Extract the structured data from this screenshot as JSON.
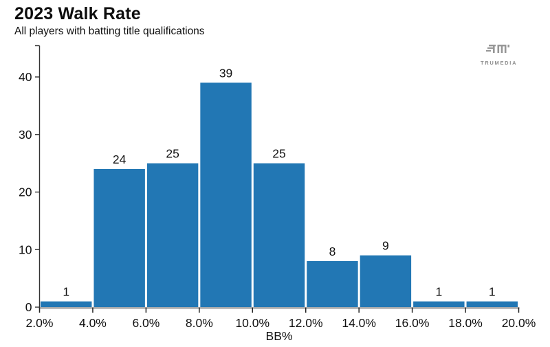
{
  "header": {
    "title": "2023 Walk Rate",
    "subtitle": "All players with batting title qualifications"
  },
  "logo": {
    "text": "TRUMEDIA"
  },
  "chart_data": {
    "type": "bar",
    "subtype": "histogram",
    "title": "2023 Walk Rate",
    "subtitle": "All players with batting title qualifications",
    "xlabel": "BB%",
    "ylabel": "",
    "bin_edges_pct": [
      2,
      4,
      6,
      8,
      10,
      12,
      14,
      16,
      18,
      20
    ],
    "categories": [
      "2-4%",
      "4-6%",
      "6-8%",
      "8-10%",
      "10-12%",
      "12-14%",
      "14-16%",
      "16-18%",
      "18-20%"
    ],
    "values": [
      1,
      24,
      25,
      39,
      25,
      8,
      9,
      1,
      1
    ],
    "bar_value_labels": [
      "1",
      "24",
      "25",
      "39",
      "25",
      "8",
      "9",
      "1",
      "1"
    ],
    "x_tick_labels": [
      "2.0%",
      "4.0%",
      "6.0%",
      "8.0%",
      "10.0%",
      "12.0%",
      "14.0%",
      "16.0%",
      "18.0%",
      "20.0%"
    ],
    "y_ticks": [
      0,
      10,
      20,
      30,
      40
    ],
    "ylim": [
      0,
      45
    ],
    "grid": false,
    "legend": false,
    "bar_color": "#2277b4",
    "text_color": "#111111",
    "x_axis_color": "#949494",
    "y_axis_color": "#333333",
    "tick_color": "#222222"
  }
}
